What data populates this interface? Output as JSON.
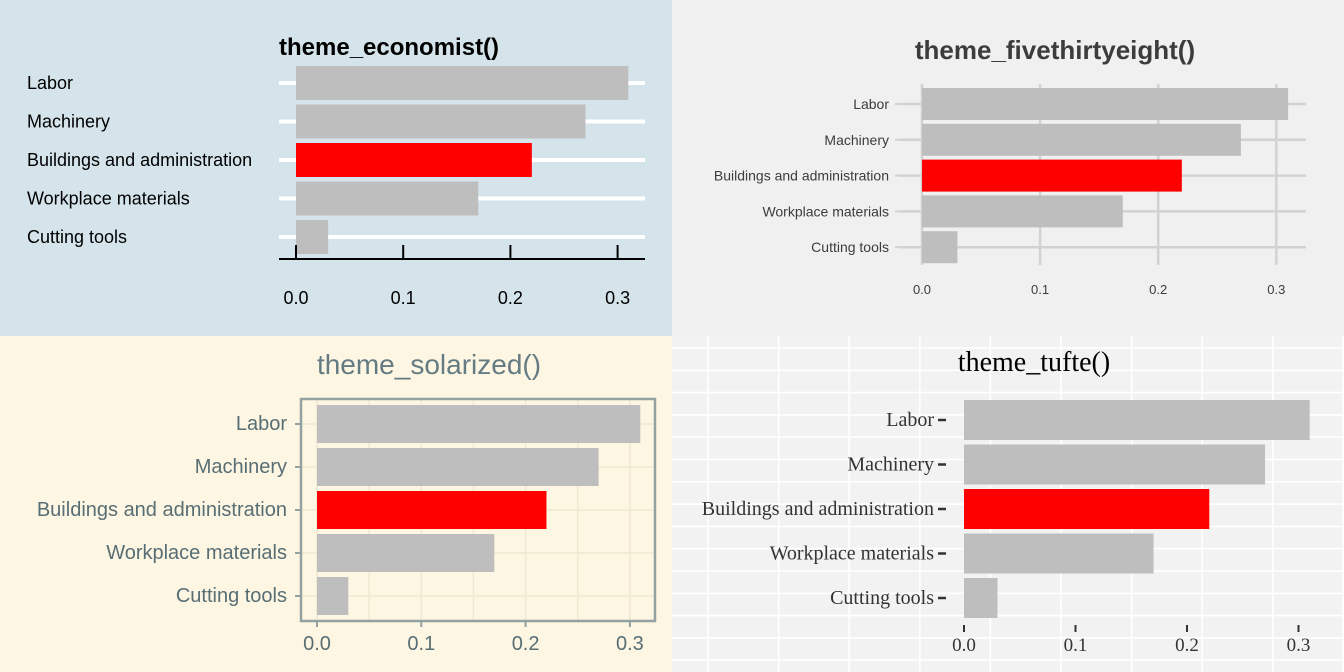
{
  "chart_data": [
    {
      "type": "bar",
      "orientation": "horizontal",
      "title": "theme_economist()",
      "categories": [
        "Labor",
        "Machinery",
        "Buildings and administration",
        "Workplace materials",
        "Cutting tools"
      ],
      "values": [
        0.31,
        0.27,
        0.22,
        0.17,
        0.03
      ],
      "highlight": "Buildings and administration",
      "xticks": [
        "0.0",
        "0.1",
        "0.2",
        "0.3"
      ],
      "xlim": [
        0,
        0.32
      ],
      "background": "#d5e4eb",
      "bar_color": "#bebebe",
      "highlight_color": "#ff0000",
      "grid": "white horizontal lines"
    },
    {
      "type": "bar",
      "orientation": "horizontal",
      "title": "theme_fivethirtyeight()",
      "categories": [
        "Labor",
        "Machinery",
        "Buildings and administration",
        "Workplace materials",
        "Cutting tools"
      ],
      "values": [
        0.31,
        0.27,
        0.22,
        0.17,
        0.03
      ],
      "highlight": "Buildings and administration",
      "xticks": [
        "0.0",
        "0.1",
        "0.2",
        "0.3"
      ],
      "xlim": [
        0,
        0.32
      ],
      "background": "#f0f0f0",
      "bar_color": "#bebebe",
      "highlight_color": "#ff0000",
      "grid": "light gray both directions"
    },
    {
      "type": "bar",
      "orientation": "horizontal",
      "title": "theme_solarized()",
      "categories": [
        "Labor",
        "Machinery",
        "Buildings and administration",
        "Workplace materials",
        "Cutting tools"
      ],
      "values": [
        0.31,
        0.27,
        0.22,
        0.17,
        0.03
      ],
      "highlight": "Buildings and administration",
      "xticks": [
        "0.0",
        "0.1",
        "0.2",
        "0.3"
      ],
      "xlim": [
        0,
        0.32
      ],
      "background": "#fdf6e3",
      "bar_color": "#bebebe",
      "highlight_color": "#ff0000",
      "grid": "faint beige, panel border"
    },
    {
      "type": "bar",
      "orientation": "horizontal",
      "title": "theme_tufte()",
      "categories": [
        "Labor",
        "Machinery",
        "Buildings and administration",
        "Workplace materials",
        "Cutting tools"
      ],
      "values": [
        0.31,
        0.27,
        0.22,
        0.17,
        0.03
      ],
      "highlight": "Buildings and administration",
      "xticks": [
        "0.0",
        "0.1",
        "0.2",
        "0.3"
      ],
      "xlim": [
        0,
        0.32
      ],
      "background": "#f2f2f2",
      "bar_color": "#bebebe",
      "highlight_color": "#ff0000",
      "grid": "white lines"
    }
  ]
}
